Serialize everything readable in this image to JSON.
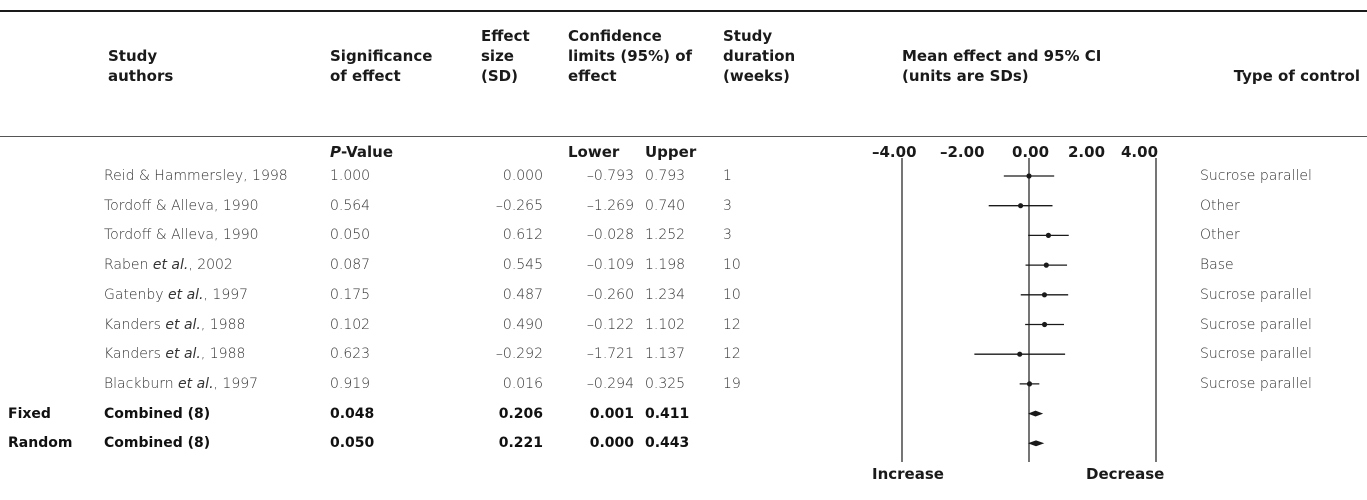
{
  "headers": {
    "authors": "Study\nauthors",
    "significance": "Significance\nof effect",
    "effect_size": "Effect\nsize\n(SD)",
    "confidence": "Confidence\nlimits (95%) of\neffect",
    "duration": "Study\nduration\n(weeks)",
    "mean_effect": "Mean effect and 95% CI\n(units are SDs)",
    "control": "Type of control"
  },
  "subheaders": {
    "pvalue_italic": "P",
    "pvalue_rest": "-Value",
    "lower": "Lower",
    "upper": "Upper"
  },
  "axis_labels": {
    "t1": "–4.00",
    "t2": "–2.00",
    "t3": "0.00",
    "t4": "2.00",
    "t5": "4.00"
  },
  "footer": {
    "left": "Increase",
    "right": "Decrease"
  },
  "rows": [
    {
      "prefix": "",
      "author": "Reid & Hammersley, 1998",
      "p": "1.000",
      "effect": "0.000",
      "lower": "–0.793",
      "upper": "0.793",
      "duration": "1",
      "control": "Sucrose parallel"
    },
    {
      "prefix": "",
      "author": "Tordoff & Alleva, 1990",
      "p": "0.564",
      "effect": "–0.265",
      "lower": "–1.269",
      "upper": "0.740",
      "duration": "3",
      "control": "Other"
    },
    {
      "prefix": "",
      "author": "Tordoff & Alleva, 1990",
      "p": "0.050",
      "effect": "0.612",
      "lower": "–0.028",
      "upper": "1.252",
      "duration": "3",
      "control": "Other"
    },
    {
      "prefix": "",
      "author": "Raben et al., 2002",
      "p": "0.087",
      "effect": "0.545",
      "lower": "–0.109",
      "upper": "1.198",
      "duration": "10",
      "control": "Base"
    },
    {
      "prefix": "",
      "author": "Gatenby et al., 1997",
      "p": "0.175",
      "effect": "0.487",
      "lower": "–0.260",
      "upper": "1.234",
      "duration": "10",
      "control": "Sucrose parallel"
    },
    {
      "prefix": "",
      "author": "Kanders et al., 1988",
      "p": "0.102",
      "effect": "0.490",
      "lower": "–0.122",
      "upper": "1.102",
      "duration": "12",
      "control": "Sucrose parallel"
    },
    {
      "prefix": "",
      "author": "Kanders et al., 1988",
      "p": "0.623",
      "effect": "–0.292",
      "lower": "–1.721",
      "upper": "1.137",
      "duration": "12",
      "control": "Sucrose parallel"
    },
    {
      "prefix": "",
      "author": "Blackburn et al., 1997",
      "p": "0.919",
      "effect": "0.016",
      "lower": "–0.294",
      "upper": "0.325",
      "duration": "19",
      "control": "Sucrose parallel"
    },
    {
      "prefix": "Fixed",
      "author": "Combined (8)",
      "p": "0.048",
      "effect": "0.206",
      "lower": "0.001",
      "upper": "0.411",
      "duration": "",
      "control": ""
    },
    {
      "prefix": "Random",
      "author": "Combined (8)",
      "p": "0.050",
      "effect": "0.221",
      "lower": "0.000",
      "upper": "0.443",
      "duration": "",
      "control": ""
    }
  ],
  "chart_data": {
    "type": "forest",
    "title": "Mean effect and 95% CI (units are SDs)",
    "xlim": [
      -4.0,
      4.0
    ],
    "xticks": [
      -4.0,
      -2.0,
      0.0,
      2.0,
      4.0
    ],
    "studies": [
      {
        "label": "Reid & Hammersley, 1998",
        "effect": 0.0,
        "lower": -0.793,
        "upper": 0.793
      },
      {
        "label": "Tordoff & Alleva, 1990",
        "effect": -0.265,
        "lower": -1.269,
        "upper": 0.74
      },
      {
        "label": "Tordoff & Alleva, 1990",
        "effect": 0.612,
        "lower": -0.028,
        "upper": 1.252
      },
      {
        "label": "Raben et al., 2002",
        "effect": 0.545,
        "lower": -0.109,
        "upper": 1.198
      },
      {
        "label": "Gatenby et al., 1997",
        "effect": 0.487,
        "lower": -0.26,
        "upper": 1.234
      },
      {
        "label": "Kanders et al., 1988",
        "effect": 0.49,
        "lower": -0.122,
        "upper": 1.102
      },
      {
        "label": "Kanders et al., 1988",
        "effect": -0.292,
        "lower": -1.721,
        "upper": 1.137
      },
      {
        "label": "Blackburn et al., 1997",
        "effect": 0.016,
        "lower": -0.294,
        "upper": 0.325
      }
    ],
    "combined": [
      {
        "label": "Fixed Combined (8)",
        "effect": 0.206,
        "lower": 0.001,
        "upper": 0.411
      },
      {
        "label": "Random Combined (8)",
        "effect": 0.221,
        "lower": 0.0,
        "upper": 0.443
      }
    ],
    "footer_left": "Increase",
    "footer_right": "Decrease"
  }
}
